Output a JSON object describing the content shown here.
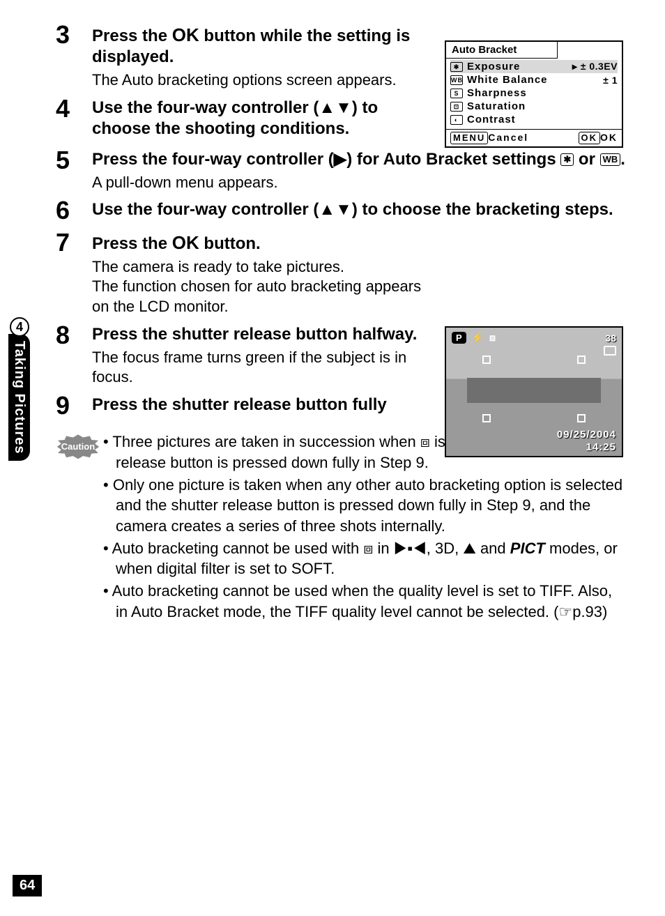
{
  "side": {
    "chapter_num": "4",
    "chapter_label": "Taking Pictures"
  },
  "page_number": "64",
  "steps": [
    {
      "num": "3",
      "title_parts": [
        "Press the ",
        "OK",
        " button while the setting is displayed."
      ],
      "desc": "The Auto bracketing options screen appears."
    },
    {
      "num": "4",
      "title_parts": [
        "Use the four-way controller (▲▼) to choose the shooting conditions."
      ],
      "desc": ""
    },
    {
      "num": "5",
      "title_parts": [
        "Press the four-way controller (▶) for Auto Bracket settings ",
        " or ",
        "."
      ],
      "icons_inline": true,
      "desc": "A pull-down menu appears."
    },
    {
      "num": "6",
      "title_parts": [
        "Use the four-way controller (▲▼) to choose the bracketing steps."
      ],
      "desc": ""
    },
    {
      "num": "7",
      "title_parts": [
        "Press the ",
        "OK",
        " button."
      ],
      "desc": "The camera is ready to take pictures.\nThe function chosen for auto bracketing appears on the LCD monitor."
    },
    {
      "num": "8",
      "title_parts": [
        "Press the shutter release button halfway."
      ],
      "desc": "The focus frame turns green if the subject is in focus."
    },
    {
      "num": "9",
      "title_parts": [
        "Press the shutter release button fully"
      ],
      "desc": ""
    }
  ],
  "menu": {
    "title": "Auto Bracket",
    "rows": [
      {
        "icon": "✱",
        "label": "Exposure",
        "value": "▸ ± 0.3EV",
        "selected": true
      },
      {
        "icon": "WB",
        "label": "White Balance",
        "value": "± 1"
      },
      {
        "icon": "S",
        "label": "Sharpness",
        "value": ""
      },
      {
        "icon": "⊡",
        "label": "Saturation",
        "value": ""
      },
      {
        "icon": "◐",
        "label": "Contrast",
        "value": ""
      }
    ],
    "footer_left_icon": "MENU",
    "footer_left": "Cancel",
    "footer_right_icon": "OK",
    "footer_right": "OK"
  },
  "lcd": {
    "mode": "P",
    "count": "38",
    "date": "09/25/2004",
    "time": "14:25"
  },
  "caution_label": "Caution",
  "caution_items": [
    "Three pictures are taken in succession when ⧈ is selected and the shutter release button is pressed down fully in Step 9.",
    "Only one picture is taken when any other auto bracketing option is selected and the shutter release button is pressed down fully in Step 9, and the camera creates a series of three shots internally.",
    "Auto bracketing cannot be used with ⧈ in ▶▪◀, 3D, ⛰ and PICT modes, or when digital filter is set to SOFT.",
    "Auto bracketing cannot be used when the quality level is set to TIFF. Also, in Auto Bracket mode, the TIFF quality level cannot be selected. (☞p.93)"
  ],
  "colors": {
    "bg": "#ffffff",
    "text": "#000000",
    "badge": "#888888",
    "sel_row": "#d9d9d9"
  }
}
